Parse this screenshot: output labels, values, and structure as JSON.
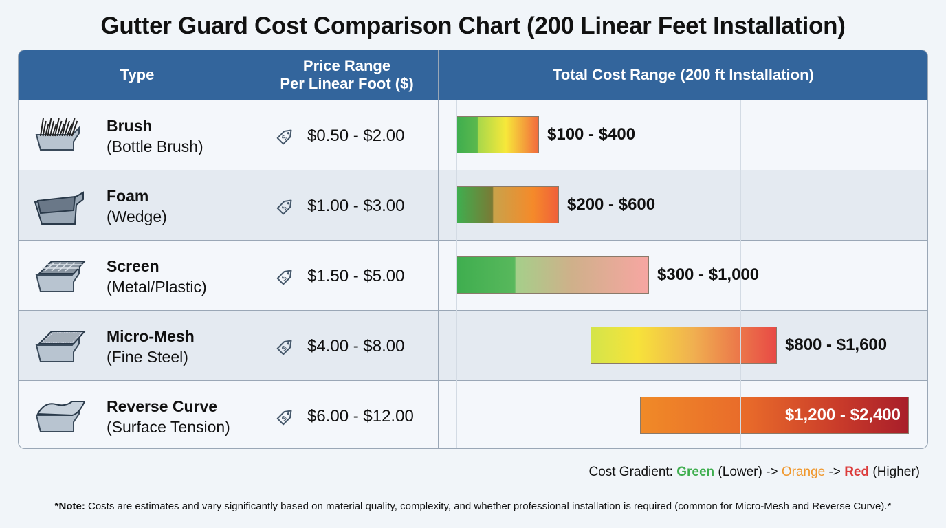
{
  "title": "Gutter Guard Cost Comparison Chart (200 Linear Feet Installation)",
  "headers": {
    "type": "Type",
    "price_line1": "Price Range",
    "price_line2": "Per Linear Foot ($)",
    "total": "Total Cost Range (200 ft Installation)"
  },
  "chart_data": {
    "type": "table",
    "rows": [
      {
        "name": "Brush",
        "sub": "(Bottle Brush)",
        "icon": "brush-gutter-icon",
        "price": "$0.50 - $2.00",
        "total": "$100 - $400",
        "low": 100,
        "high": 400
      },
      {
        "name": "Foam",
        "sub": "(Wedge)",
        "icon": "foam-gutter-icon",
        "price": "$1.00 - $3.00",
        "total": "$200 - $600",
        "low": 200,
        "high": 600
      },
      {
        "name": "Screen",
        "sub": "(Metal/Plastic)",
        "icon": "screen-gutter-icon",
        "price": "$1.50 - $5.00",
        "total": "$300 - $1,000",
        "low": 300,
        "high": 1000
      },
      {
        "name": "Micro-Mesh",
        "sub": "(Fine Steel)",
        "icon": "micro-mesh-gutter-icon",
        "price": "$4.00 - $8.00",
        "total": "$800 - $1,600",
        "low": 800,
        "high": 1600
      },
      {
        "name": "Reverse Curve",
        "sub": "(Surface Tension)",
        "icon": "reverse-curve-gutter-icon",
        "price": "$6.00 - $12.00",
        "total": "$1,200 - $2,400",
        "low": 1200,
        "high": 2400
      }
    ]
  },
  "legend": {
    "prefix": "Cost Gradient: ",
    "green": "Green",
    "lower": " (Lower) -> ",
    "orange": "Orange",
    "arrow": " -> ",
    "red": "Red",
    "higher": " (Higher)",
    "colors": {
      "green": "#3fae4f",
      "orange": "#f0962a",
      "red": "#dc3b3b"
    }
  },
  "note": {
    "bold": "*Note:",
    "text": " Costs are estimates and vary significantly based on material quality, complexity, and whether professional installation is required (common for Micro-Mesh and Reverse Curve).*"
  }
}
